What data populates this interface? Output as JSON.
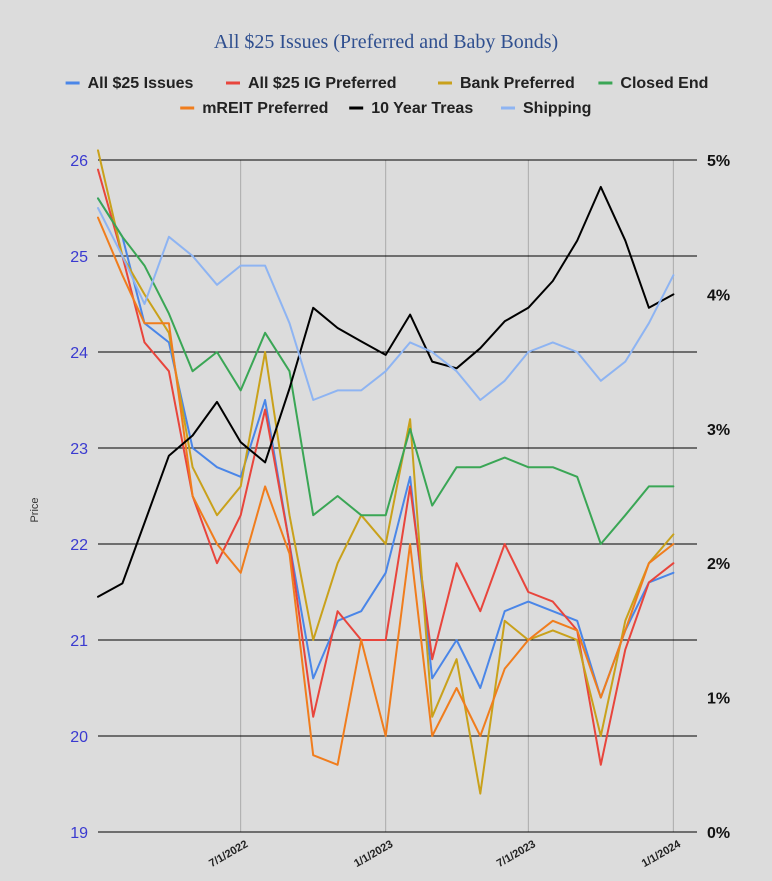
{
  "chart_data": {
    "type": "line",
    "title": "All $25 Issues (Preferred and Baby Bonds)",
    "ylabel": "Price",
    "ylim": [
      19,
      26
    ],
    "y_ticks": [
      "19",
      "20",
      "21",
      "22",
      "23",
      "24",
      "25",
      "26"
    ],
    "y2lim": [
      0,
      5
    ],
    "y2_ticks": [
      "0%",
      "1%",
      "2%",
      "3%",
      "4%",
      "5%"
    ],
    "x_range": [
      "2022-01-01",
      "2024-01-31"
    ],
    "x_ticks": [
      {
        "date": "2022-07-01",
        "label": "7/1/2022"
      },
      {
        "date": "2023-01-01",
        "label": "1/1/2023"
      },
      {
        "date": "2023-07-01",
        "label": "7/1/2023"
      },
      {
        "date": "2024-01-01",
        "label": "1/1/2024"
      }
    ],
    "grid": true,
    "legend_position": "top",
    "series": [
      {
        "name": "All $25 Issues",
        "color": "#4a86e8",
        "axis": "left",
        "points": [
          [
            "2022-01-01",
            25.6
          ],
          [
            "2022-02-01",
            25.2
          ],
          [
            "2022-03-01",
            24.3
          ],
          [
            "2022-04-01",
            24.1
          ],
          [
            "2022-05-01",
            23.0
          ],
          [
            "2022-06-01",
            22.8
          ],
          [
            "2022-07-01",
            22.7
          ],
          [
            "2022-08-01",
            23.5
          ],
          [
            "2022-09-01",
            22.0
          ],
          [
            "2022-10-01",
            20.6
          ],
          [
            "2022-11-01",
            21.2
          ],
          [
            "2022-12-01",
            21.3
          ],
          [
            "2023-01-01",
            21.7
          ],
          [
            "2023-02-01",
            22.7
          ],
          [
            "2023-03-01",
            20.6
          ],
          [
            "2023-04-01",
            21.0
          ],
          [
            "2023-05-01",
            20.5
          ],
          [
            "2023-06-01",
            21.3
          ],
          [
            "2023-07-01",
            21.4
          ],
          [
            "2023-08-01",
            21.3
          ],
          [
            "2023-09-01",
            21.2
          ],
          [
            "2023-10-01",
            20.4
          ],
          [
            "2023-11-01",
            21.1
          ],
          [
            "2023-12-01",
            21.6
          ],
          [
            "2024-01-01",
            21.7
          ]
        ]
      },
      {
        "name": "All $25 IG Preferred",
        "color": "#e8453c",
        "axis": "left",
        "points": [
          [
            "2022-01-01",
            25.9
          ],
          [
            "2022-02-01",
            25.0
          ],
          [
            "2022-03-01",
            24.1
          ],
          [
            "2022-04-01",
            23.8
          ],
          [
            "2022-05-01",
            22.5
          ],
          [
            "2022-06-01",
            21.8
          ],
          [
            "2022-07-01",
            22.3
          ],
          [
            "2022-08-01",
            23.4
          ],
          [
            "2022-09-01",
            22.0
          ],
          [
            "2022-10-01",
            20.2
          ],
          [
            "2022-11-01",
            21.3
          ],
          [
            "2022-12-01",
            21.0
          ],
          [
            "2023-01-01",
            21.0
          ],
          [
            "2023-02-01",
            22.6
          ],
          [
            "2023-03-01",
            20.8
          ],
          [
            "2023-04-01",
            21.8
          ],
          [
            "2023-05-01",
            21.3
          ],
          [
            "2023-06-01",
            22.0
          ],
          [
            "2023-07-01",
            21.5
          ],
          [
            "2023-08-01",
            21.4
          ],
          [
            "2023-09-01",
            21.1
          ],
          [
            "2023-10-01",
            19.7
          ],
          [
            "2023-11-01",
            20.9
          ],
          [
            "2023-12-01",
            21.6
          ],
          [
            "2024-01-01",
            21.8
          ]
        ]
      },
      {
        "name": "Bank Preferred",
        "color": "#c9a11b",
        "axis": "left",
        "points": [
          [
            "2022-01-01",
            26.1
          ],
          [
            "2022-02-01",
            25.0
          ],
          [
            "2022-03-01",
            24.6
          ],
          [
            "2022-04-01",
            24.2
          ],
          [
            "2022-05-01",
            22.8
          ],
          [
            "2022-06-01",
            22.3
          ],
          [
            "2022-07-01",
            22.6
          ],
          [
            "2022-08-01",
            24.0
          ],
          [
            "2022-09-01",
            22.3
          ],
          [
            "2022-10-01",
            21.0
          ],
          [
            "2022-11-01",
            21.8
          ],
          [
            "2022-12-01",
            22.3
          ],
          [
            "2023-01-01",
            22.0
          ],
          [
            "2023-02-01",
            23.3
          ],
          [
            "2023-03-01",
            20.2
          ],
          [
            "2023-04-01",
            20.8
          ],
          [
            "2023-05-01",
            19.4
          ],
          [
            "2023-06-01",
            21.2
          ],
          [
            "2023-07-01",
            21.0
          ],
          [
            "2023-08-01",
            21.1
          ],
          [
            "2023-09-01",
            21.0
          ],
          [
            "2023-10-01",
            20.0
          ],
          [
            "2023-11-01",
            21.2
          ],
          [
            "2023-12-01",
            21.8
          ],
          [
            "2024-01-01",
            22.1
          ]
        ]
      },
      {
        "name": "Closed End",
        "color": "#3aa655",
        "axis": "left",
        "points": [
          [
            "2022-01-01",
            25.6
          ],
          [
            "2022-02-01",
            25.2
          ],
          [
            "2022-03-01",
            24.9
          ],
          [
            "2022-04-01",
            24.4
          ],
          [
            "2022-05-01",
            23.8
          ],
          [
            "2022-06-01",
            24.0
          ],
          [
            "2022-07-01",
            23.6
          ],
          [
            "2022-08-01",
            24.2
          ],
          [
            "2022-09-01",
            23.8
          ],
          [
            "2022-10-01",
            22.3
          ],
          [
            "2022-11-01",
            22.5
          ],
          [
            "2022-12-01",
            22.3
          ],
          [
            "2023-01-01",
            22.3
          ],
          [
            "2023-02-01",
            23.2
          ],
          [
            "2023-03-01",
            22.4
          ],
          [
            "2023-04-01",
            22.8
          ],
          [
            "2023-05-01",
            22.8
          ],
          [
            "2023-06-01",
            22.9
          ],
          [
            "2023-07-01",
            22.8
          ],
          [
            "2023-08-01",
            22.8
          ],
          [
            "2023-09-01",
            22.7
          ],
          [
            "2023-10-01",
            22.0
          ],
          [
            "2023-11-01",
            22.3
          ],
          [
            "2023-12-01",
            22.6
          ],
          [
            "2024-01-01",
            22.6
          ]
        ]
      },
      {
        "name": "mREIT Preferred",
        "color": "#f07d1d",
        "axis": "left",
        "points": [
          [
            "2022-01-01",
            25.4
          ],
          [
            "2022-02-01",
            24.8
          ],
          [
            "2022-03-01",
            24.3
          ],
          [
            "2022-04-01",
            24.3
          ],
          [
            "2022-05-01",
            22.5
          ],
          [
            "2022-06-01",
            22.0
          ],
          [
            "2022-07-01",
            21.7
          ],
          [
            "2022-08-01",
            22.6
          ],
          [
            "2022-09-01",
            21.9
          ],
          [
            "2022-10-01",
            19.8
          ],
          [
            "2022-11-01",
            19.7
          ],
          [
            "2022-12-01",
            21.0
          ],
          [
            "2023-01-01",
            20.0
          ],
          [
            "2023-02-01",
            22.0
          ],
          [
            "2023-03-01",
            20.0
          ],
          [
            "2023-04-01",
            20.5
          ],
          [
            "2023-05-01",
            20.0
          ],
          [
            "2023-06-01",
            20.7
          ],
          [
            "2023-07-01",
            21.0
          ],
          [
            "2023-08-01",
            21.2
          ],
          [
            "2023-09-01",
            21.1
          ],
          [
            "2023-10-01",
            20.4
          ],
          [
            "2023-11-01",
            21.1
          ],
          [
            "2023-12-01",
            21.8
          ],
          [
            "2024-01-01",
            22.0
          ]
        ]
      },
      {
        "name": "10 Year Treas",
        "color": "#000000",
        "axis": "right",
        "points": [
          [
            "2022-01-01",
            1.75
          ],
          [
            "2022-02-01",
            1.85
          ],
          [
            "2022-03-01",
            2.3
          ],
          [
            "2022-04-01",
            2.8
          ],
          [
            "2022-05-01",
            2.95
          ],
          [
            "2022-06-01",
            3.2
          ],
          [
            "2022-07-01",
            2.9
          ],
          [
            "2022-08-01",
            2.75
          ],
          [
            "2022-09-01",
            3.3
          ],
          [
            "2022-10-01",
            3.9
          ],
          [
            "2022-11-01",
            3.75
          ],
          [
            "2022-12-01",
            3.65
          ],
          [
            "2023-01-01",
            3.55
          ],
          [
            "2023-02-01",
            3.85
          ],
          [
            "2023-03-01",
            3.5
          ],
          [
            "2023-04-01",
            3.45
          ],
          [
            "2023-05-01",
            3.6
          ],
          [
            "2023-06-01",
            3.8
          ],
          [
            "2023-07-01",
            3.9
          ],
          [
            "2023-08-01",
            4.1
          ],
          [
            "2023-09-01",
            4.4
          ],
          [
            "2023-10-01",
            4.8
          ],
          [
            "2023-11-01",
            4.4
          ],
          [
            "2023-12-01",
            3.9
          ],
          [
            "2024-01-01",
            4.0
          ]
        ]
      },
      {
        "name": "Shipping",
        "color": "#8eb4f2",
        "axis": "left",
        "points": [
          [
            "2022-01-01",
            25.5
          ],
          [
            "2022-02-01",
            25.0
          ],
          [
            "2022-03-01",
            24.5
          ],
          [
            "2022-04-01",
            25.2
          ],
          [
            "2022-05-01",
            25.0
          ],
          [
            "2022-06-01",
            24.7
          ],
          [
            "2022-07-01",
            24.9
          ],
          [
            "2022-08-01",
            24.9
          ],
          [
            "2022-09-01",
            24.3
          ],
          [
            "2022-10-01",
            23.5
          ],
          [
            "2022-11-01",
            23.6
          ],
          [
            "2022-12-01",
            23.6
          ],
          [
            "2023-01-01",
            23.8
          ],
          [
            "2023-02-01",
            24.1
          ],
          [
            "2023-03-01",
            24.0
          ],
          [
            "2023-04-01",
            23.8
          ],
          [
            "2023-05-01",
            23.5
          ],
          [
            "2023-06-01",
            23.7
          ],
          [
            "2023-07-01",
            24.0
          ],
          [
            "2023-08-01",
            24.1
          ],
          [
            "2023-09-01",
            24.0
          ],
          [
            "2023-10-01",
            23.7
          ],
          [
            "2023-11-01",
            23.9
          ],
          [
            "2023-12-01",
            24.3
          ],
          [
            "2024-01-01",
            24.8
          ]
        ]
      }
    ]
  }
}
